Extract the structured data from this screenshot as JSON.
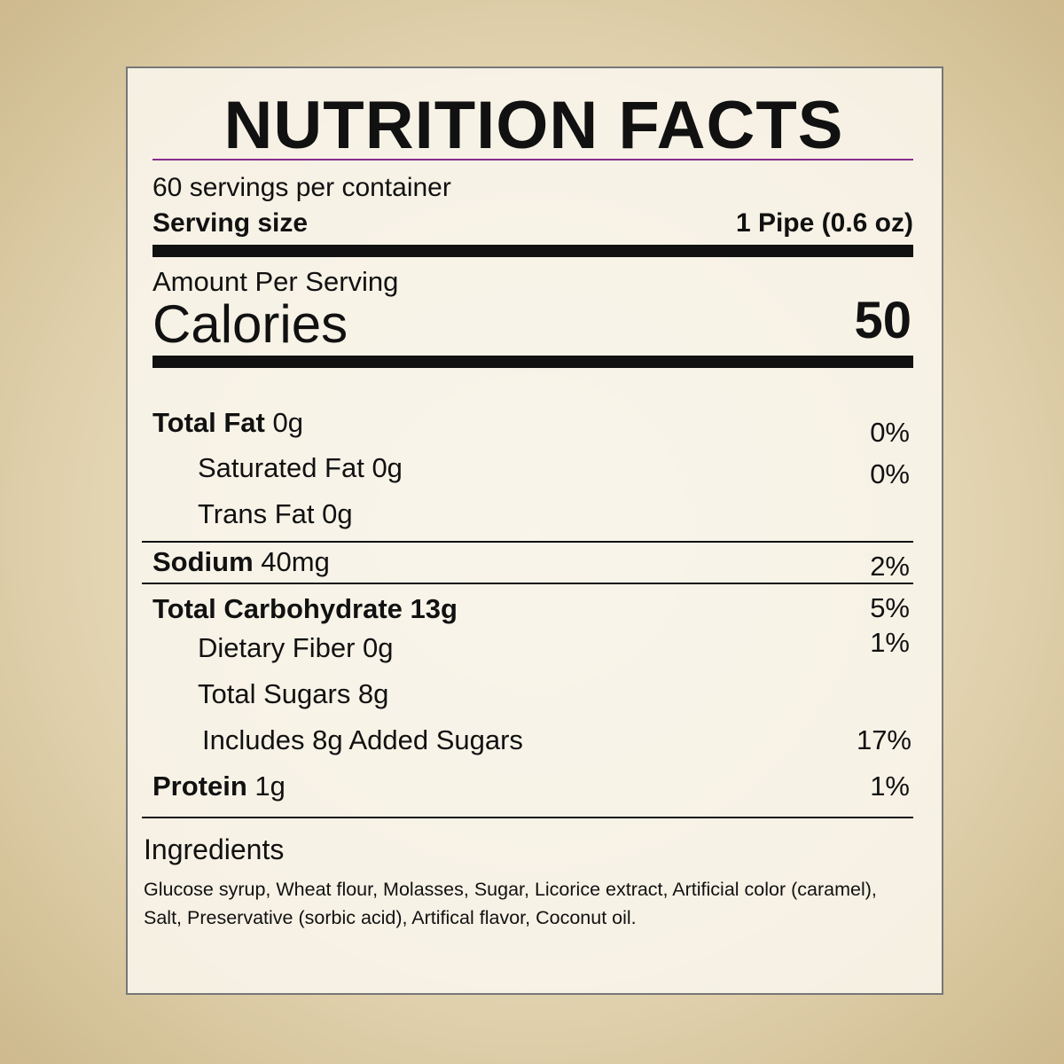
{
  "title": "NUTRITION FACTS",
  "servings": "60 servings per container",
  "serving_size": {
    "label": "Serving size",
    "value": "1 Pipe (0.6 oz)"
  },
  "amount_per_serving": "Amount Per Serving",
  "calories": {
    "label": "Calories",
    "value": 50
  },
  "nutrients": [
    {
      "name": "Total Fat",
      "amount": "0g",
      "dv": "0%"
    },
    {
      "name": "Saturated Fat 0g",
      "dv": "0%"
    },
    {
      "name": "Trans Fat 0g"
    },
    {
      "name": "Sodium",
      "amount": "40mg",
      "dv": "2%"
    },
    {
      "name": "Total Carbohydrate 13g",
      "dv": "5%"
    },
    {
      "name": "Dietary Fiber 0g",
      "dv": "1%"
    },
    {
      "name": "Total Sugars 8g"
    },
    {
      "name": "Includes 8g Added Sugars",
      "dv": "17%"
    },
    {
      "name": "Protein",
      "amount": "1g",
      "dv": "1%"
    }
  ],
  "ingredients": {
    "heading": "Ingredients",
    "text": "Glucose syrup, Wheat flour, Molasses, Sugar, Licorice extract, Artificial color (caramel), Salt, Preservative (sorbic acid), Artifical flavor, Coconut oil."
  }
}
